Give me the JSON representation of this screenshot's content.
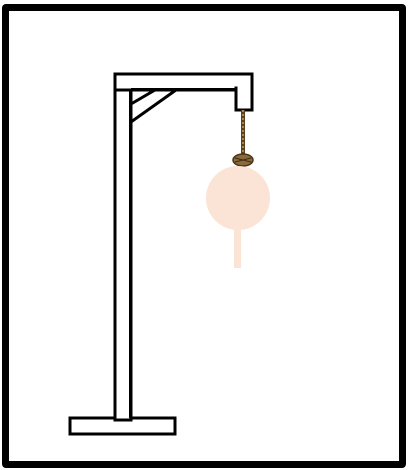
{
  "game": {
    "wrong_guesses": 2,
    "figure_parts_shown": [
      "head",
      "body"
    ]
  },
  "colors": {
    "frame_border": "#000000",
    "gallows_stroke": "#000000",
    "gallows_fill": "#ffffff",
    "rope": "#8a6a3a",
    "rope_dark": "#5a4220",
    "figure": "#fbe3d6"
  }
}
